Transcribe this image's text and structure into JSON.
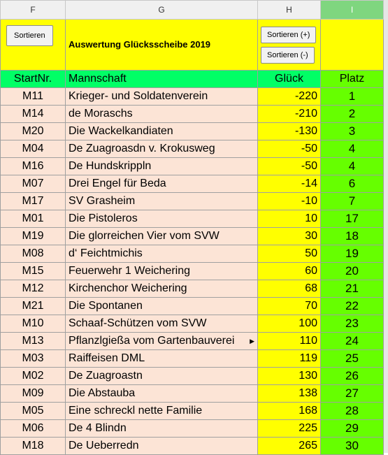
{
  "columns": [
    "F",
    "G",
    "H",
    "I"
  ],
  "buttons": {
    "sort": "Sortieren",
    "sort_plus": "Sortieren (+)",
    "sort_minus": "Sortieren (-)"
  },
  "title": "Auswertung Glücksscheibe 2019",
  "headers": [
    "StartNr.",
    "Mannschaft",
    "Glück",
    "Platz"
  ],
  "rows": [
    [
      "M11",
      "Krieger- und Soldatenverein",
      "-220",
      "1"
    ],
    [
      "M14",
      "de Moraschs",
      "-210",
      "2"
    ],
    [
      "M20",
      "Die Wackelkandiaten",
      "-130",
      "3"
    ],
    [
      "M04",
      "De Zuagroasdn v. Krokusweg",
      "-50",
      "4"
    ],
    [
      "M16",
      "De Hundskrippln",
      "-50",
      "4"
    ],
    [
      "M07",
      "Drei Engel für Beda",
      "-14",
      "6"
    ],
    [
      "M17",
      "SV Grasheim",
      "-10",
      "7"
    ],
    [
      "M01",
      "Die Pistoleros",
      "10",
      "17"
    ],
    [
      "M19",
      "Die glorreichen Vier vom SVW",
      "30",
      "18"
    ],
    [
      "M08",
      "d‘ Feichtmichis",
      "50",
      "19"
    ],
    [
      "M15",
      "Feuerwehr 1 Weichering",
      "60",
      "20"
    ],
    [
      "M12",
      "Kirchenchor Weichering",
      "68",
      "21"
    ],
    [
      "M21",
      "Die Spontanen",
      "70",
      "22"
    ],
    [
      "M10",
      "Schaaf-Schützen vom SVW",
      "100",
      "23"
    ],
    [
      "M13",
      "Pflanzlgießa vom Gartenbauverei",
      "110",
      "24"
    ],
    [
      "M03",
      "Raiffeisen DML",
      "119",
      "25"
    ],
    [
      "M02",
      "De Zuagroastn",
      "130",
      "26"
    ],
    [
      "M09",
      "Die Abstauba",
      "138",
      "27"
    ],
    [
      "M05",
      "Eine schreckl nette Familie",
      "168",
      "28"
    ],
    [
      "M06",
      "De 4 Blindn",
      "225",
      "29"
    ],
    [
      "M18",
      "De Ueberredn",
      "265",
      "30"
    ]
  ]
}
